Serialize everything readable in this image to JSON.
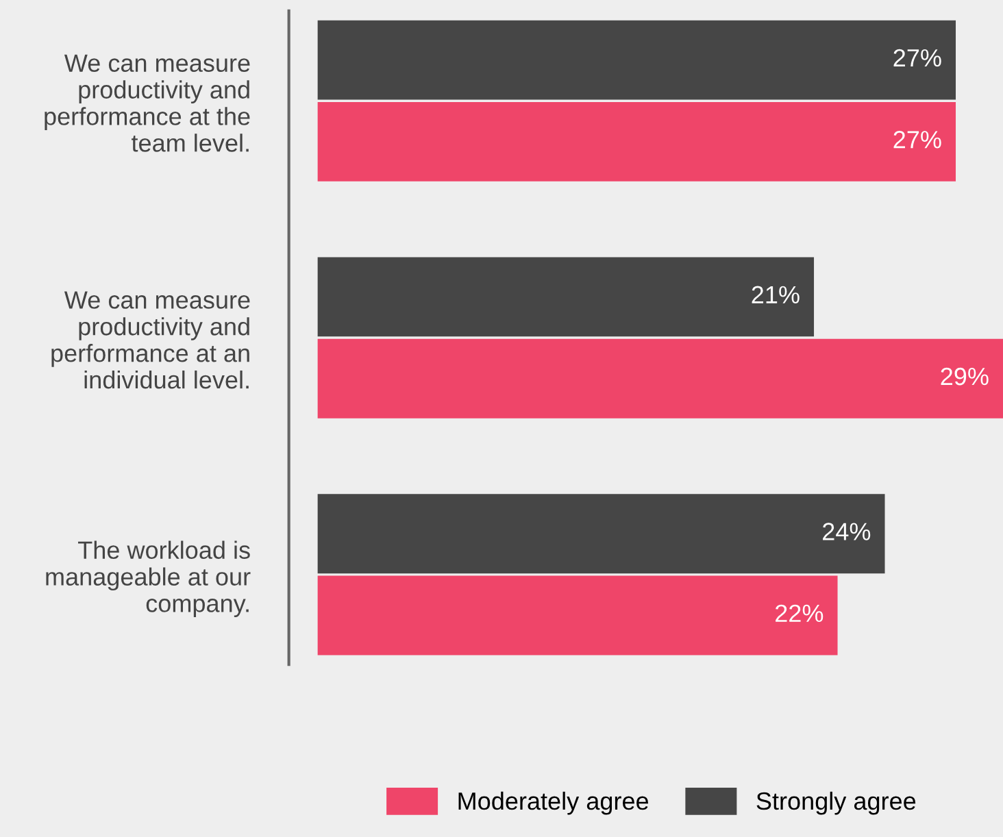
{
  "chart_data": {
    "type": "bar",
    "orientation": "horizontal",
    "categories": [
      "We can measure\nproductivity and\nperformance at the\nteam level.",
      "We can measure\nproductivity and\nperformance at an\nindividual level.",
      "The workload is\nmanageable at our\ncompany."
    ],
    "series": [
      {
        "name": "Moderately agree",
        "color": "#ef4569",
        "values": [
          27,
          29,
          22
        ],
        "value_labels": [
          "27%",
          "29%",
          "22%"
        ]
      },
      {
        "name": "Strongly agree",
        "color": "#464646",
        "values": [
          27,
          21,
          24
        ],
        "value_labels": [
          "27%",
          "21%",
          "24%"
        ]
      }
    ],
    "legend": "bottom",
    "grid": false
  }
}
